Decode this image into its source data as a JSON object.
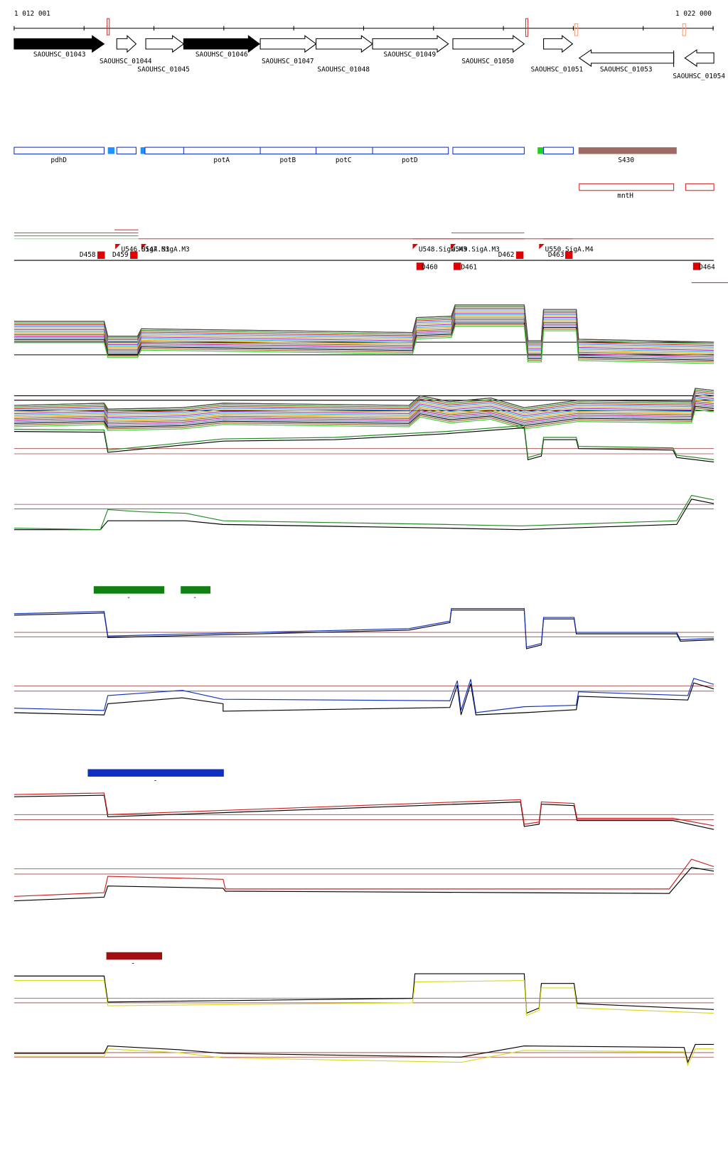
{
  "ruler": {
    "start": "1 012 001",
    "end": "1 022 000"
  },
  "genes": [
    "SAOUHSC_01043",
    "SAOUHSC_01044",
    "SAOUHSC_01045",
    "SAOUHSC_01046",
    "SAOUHSC_01047",
    "SAOUHSC_01048",
    "SAOUHSC_01049",
    "SAOUHSC_01050",
    "SAOUHSC_01051",
    "SAOUHSC_01053",
    "SAOUHSC_01054"
  ],
  "features": [
    "pdhD",
    "potA",
    "potB",
    "potC",
    "potD",
    "S430",
    "mntH"
  ],
  "sites": [
    "U546.SigA.M3",
    "U547.SigA.M3",
    "U548.SigA.M3",
    "U549.SigA.M3",
    "U550.SigA.M4",
    "D458",
    "D459",
    "D460",
    "D461",
    "D462",
    "D463",
    "D464"
  ],
  "markers": [
    "-",
    "-",
    "-",
    "-"
  ]
}
